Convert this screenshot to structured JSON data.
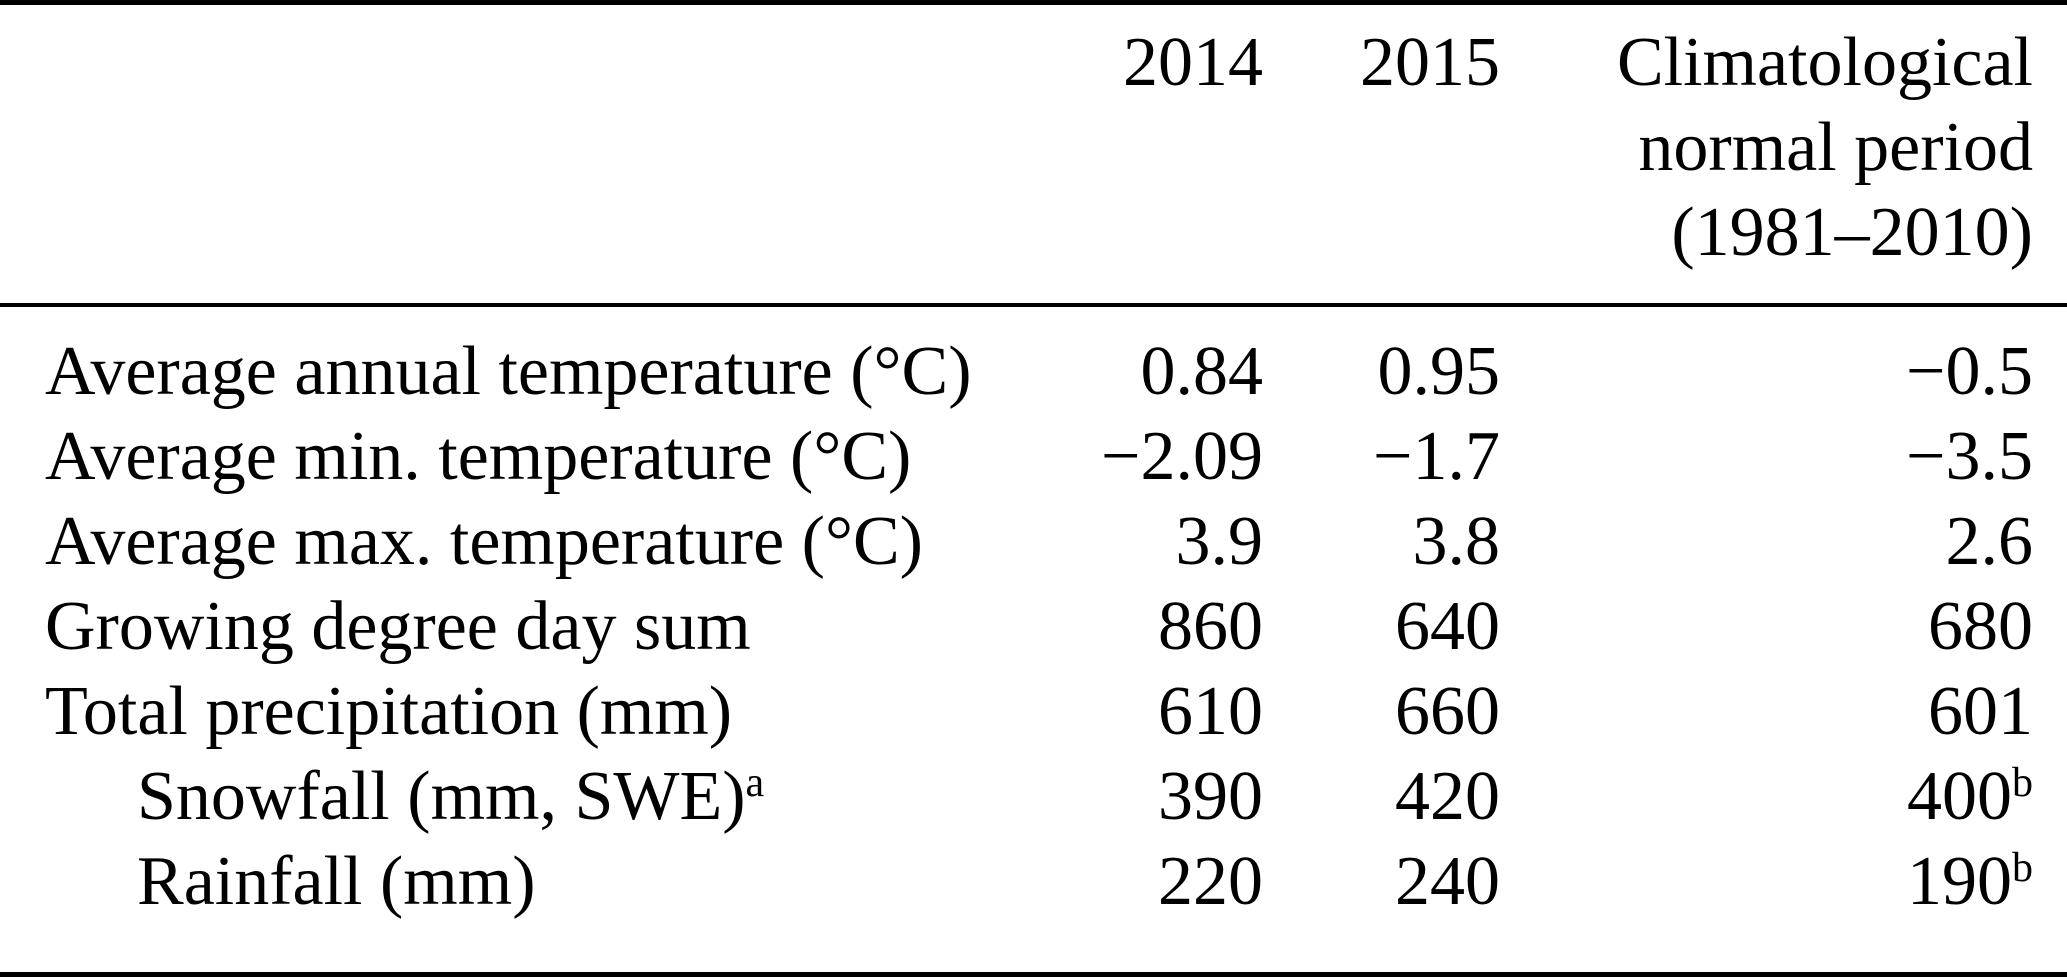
{
  "table": {
    "header": {
      "label_col": "",
      "year_1": "2014",
      "year_2": "2015",
      "normal_lines": [
        "Climatological",
        "normal period",
        "(1981–2010)"
      ]
    },
    "rows": [
      {
        "label": "Average annual temperature (°C)",
        "label_sup": "",
        "y2014": "0.84",
        "y2015": "0.95",
        "normal": "−0.5",
        "normal_sup": ""
      },
      {
        "label": "Average min. temperature (°C)",
        "label_sup": "",
        "y2014": "−2.09",
        "y2015": "−1.7",
        "normal": "−3.5",
        "normal_sup": ""
      },
      {
        "label": "Average max. temperature (°C)",
        "label_sup": "",
        "y2014": "3.9",
        "y2015": "3.8",
        "normal": "2.6",
        "normal_sup": ""
      },
      {
        "label": "Growing degree day sum",
        "label_sup": "",
        "y2014": "860",
        "y2015": "640",
        "normal": "680",
        "normal_sup": ""
      },
      {
        "label": "Total precipitation (mm)",
        "label_sup": "",
        "y2014": "610",
        "y2015": "660",
        "normal": "601",
        "normal_sup": ""
      },
      {
        "label": "Snowfall (mm, SWE)",
        "label_sup": "a",
        "y2014": "390",
        "y2015": "420",
        "normal": "400",
        "normal_sup": "b"
      },
      {
        "label": "Rainfall (mm)",
        "label_sup": "",
        "y2014": "220",
        "y2015": "240",
        "normal": "190",
        "normal_sup": "b"
      }
    ]
  },
  "colors": {
    "text": "#000000",
    "background": "#ffffff",
    "rule": "#000000"
  }
}
